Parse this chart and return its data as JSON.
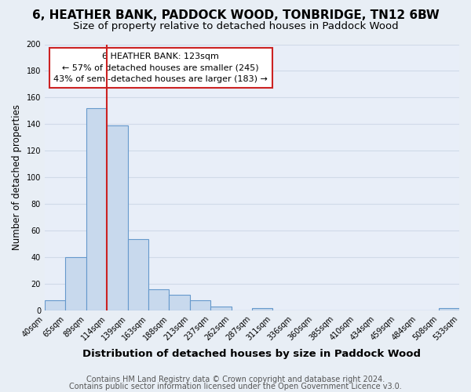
{
  "title": "6, HEATHER BANK, PADDOCK WOOD, TONBRIDGE, TN12 6BW",
  "subtitle": "Size of property relative to detached houses in Paddock Wood",
  "xlabel": "Distribution of detached houses by size in Paddock Wood",
  "ylabel": "Number of detached properties",
  "bar_values": [
    8,
    40,
    152,
    139,
    54,
    16,
    12,
    8,
    3,
    0,
    2,
    0,
    0,
    0,
    0,
    0,
    0,
    0,
    0,
    2
  ],
  "bin_edges_labels": [
    "40sqm",
    "65sqm",
    "89sqm",
    "114sqm",
    "139sqm",
    "163sqm",
    "188sqm",
    "213sqm",
    "237sqm",
    "262sqm",
    "287sqm",
    "311sqm",
    "336sqm",
    "360sqm",
    "385sqm",
    "410sqm",
    "434sqm",
    "459sqm",
    "484sqm",
    "508sqm",
    "533sqm"
  ],
  "bar_color": "#c8d9ed",
  "bar_edge_color": "#6699cc",
  "ylim": [
    0,
    200
  ],
  "yticks": [
    0,
    20,
    40,
    60,
    80,
    100,
    120,
    140,
    160,
    180,
    200
  ],
  "vline_pos": 3,
  "vline_color": "#cc2222",
  "annotation_title": "6 HEATHER BANK: 123sqm",
  "annotation_line1": "← 57% of detached houses are smaller (245)",
  "annotation_line2": "43% of semi-detached houses are larger (183) →",
  "annotation_box_color": "#ffffff",
  "annotation_box_edge": "#cc2222",
  "footer1": "Contains HM Land Registry data © Crown copyright and database right 2024.",
  "footer2": "Contains public sector information licensed under the Open Government Licence v3.0.",
  "bg_color": "#e8eef5",
  "plot_bg_color": "#e8eef8",
  "grid_color": "#d0dae8",
  "title_fontsize": 11,
  "subtitle_fontsize": 9.5,
  "xlabel_fontsize": 9.5,
  "ylabel_fontsize": 8.5,
  "tick_fontsize": 7,
  "footer_fontsize": 7
}
